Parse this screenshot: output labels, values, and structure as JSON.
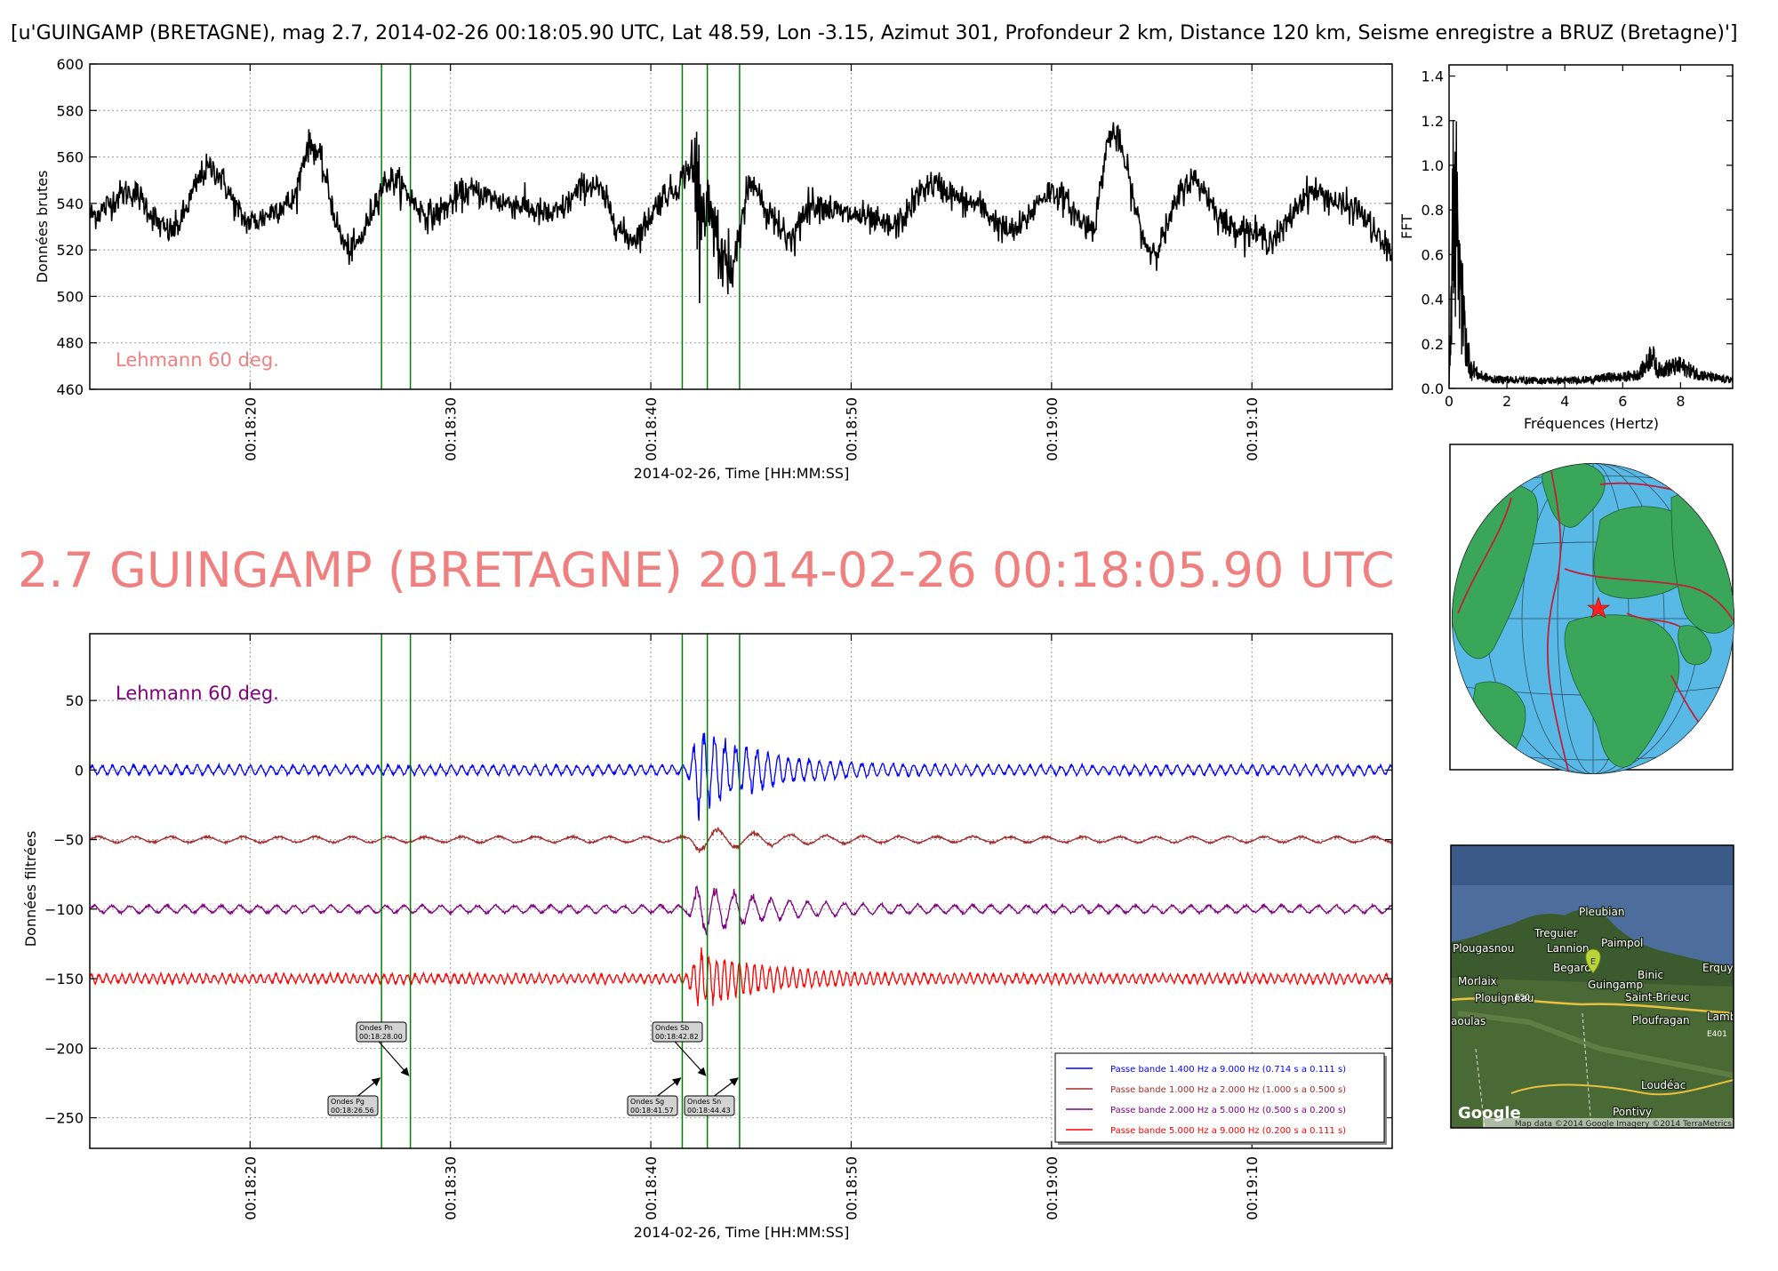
{
  "figure": {
    "suptitle": "[u'GUINGAMP (BRETAGNE), mag 2.7, 2014-02-26 00:18:05.90 UTC, Lat 48.59, Lon -3.15, Azimut 301, Profondeur 2 km, Distance   120 km, Seisme enregistre a BRUZ (Bretagne)']",
    "big_title": "2.7 GUINGAMP (BRETAGNE) 2014-02-26 00:18:05.90 UTC",
    "colors": {
      "raw": "#000000",
      "phase_line": "#008000",
      "annotation": "#f08080",
      "band1": "#0000ff",
      "band2": "#a52a2a",
      "band3": "#800080",
      "band4": "#ff0000"
    }
  },
  "chart_data": [
    {
      "id": "raw",
      "type": "line",
      "ylabel": "Données brutes",
      "xlabel": "2014-02-26, Time [HH:MM:SS]",
      "ylim": [
        460,
        600
      ],
      "yticks": [
        460,
        480,
        500,
        520,
        540,
        560,
        580,
        600
      ],
      "xlim": [
        "00:18:12",
        "00:19:17"
      ],
      "xticks": [
        "00:18:20",
        "00:18:30",
        "00:18:40",
        "00:18:50",
        "00:19:00",
        "00:19:10"
      ],
      "grid": true,
      "annotation": "Lehmann 60 deg.",
      "phase_lines": [
        "00:18:26.56",
        "00:18:28.00",
        "00:18:41.57",
        "00:18:42.82",
        "00:18:44.43"
      ],
      "series": [
        {
          "color": "#000000",
          "x": [
            "00:18:12",
            "00:18:14",
            "00:18:16",
            "00:18:18",
            "00:18:20",
            "00:18:22",
            "00:18:23",
            "00:18:25",
            "00:18:27",
            "00:18:29",
            "00:18:31",
            "00:18:33",
            "00:18:35",
            "00:18:37",
            "00:18:39",
            "00:18:41",
            "00:18:42",
            "00:18:43",
            "00:18:44",
            "00:18:45",
            "00:18:46",
            "00:18:47",
            "00:18:48",
            "00:18:50",
            "00:18:52",
            "00:18:54",
            "00:18:56",
            "00:18:58",
            "00:19:00",
            "00:19:02",
            "00:19:03",
            "00:19:05",
            "00:19:07",
            "00:19:09",
            "00:19:11",
            "00:19:13",
            "00:19:15",
            "00:19:17"
          ],
          "y": [
            535,
            545,
            528,
            555,
            532,
            540,
            565,
            520,
            550,
            535,
            545,
            540,
            535,
            548,
            525,
            545,
            555,
            530,
            510,
            548,
            535,
            525,
            540,
            535,
            530,
            548,
            540,
            528,
            545,
            530,
            570,
            520,
            550,
            530,
            525,
            545,
            538,
            520
          ]
        }
      ]
    },
    {
      "id": "fft",
      "type": "line",
      "ylabel": "FFT",
      "xlabel": "Fréquences (Hertz)",
      "ylim": [
        0,
        1.45
      ],
      "yticks": [
        0.0,
        0.2,
        0.4,
        0.6,
        0.8,
        1.0,
        1.2,
        1.4
      ],
      "xlim": [
        0,
        9.8
      ],
      "xticks": [
        0,
        2,
        4,
        6,
        8
      ],
      "series": [
        {
          "color": "#000000",
          "x": [
            0.0,
            0.05,
            0.1,
            0.15,
            0.2,
            0.25,
            0.3,
            0.35,
            0.4,
            0.5,
            0.6,
            0.7,
            0.8,
            1.0,
            1.5,
            2.0,
            3.0,
            4.0,
            5.0,
            5.5,
            6.0,
            6.5,
            6.8,
            7.0,
            7.2,
            7.5,
            8.0,
            8.5,
            9.0,
            9.5,
            9.8
          ],
          "y": [
            0.05,
            0.35,
            0.65,
            1.02,
            0.85,
            0.95,
            0.7,
            0.55,
            0.5,
            0.4,
            0.25,
            0.15,
            0.1,
            0.06,
            0.04,
            0.04,
            0.035,
            0.035,
            0.04,
            0.05,
            0.05,
            0.06,
            0.1,
            0.16,
            0.08,
            0.09,
            0.1,
            0.07,
            0.05,
            0.04,
            0.04
          ]
        }
      ]
    },
    {
      "id": "filtered",
      "type": "line",
      "ylabel": "Données filtrées",
      "xlabel": "2014-02-26, Time [HH:MM:SS]",
      "ylim": [
        -272,
        98
      ],
      "yticks": [
        -250,
        -200,
        -150,
        -100,
        -50,
        0,
        50
      ],
      "xlim": [
        "00:18:12",
        "00:19:17"
      ],
      "xticks": [
        "00:18:20",
        "00:18:30",
        "00:18:40",
        "00:18:50",
        "00:19:00",
        "00:19:10"
      ],
      "grid": true,
      "annotation": "Lehmann 60 deg.",
      "phase_lines": [
        "00:18:26.56",
        "00:18:28.00",
        "00:18:41.57",
        "00:18:42.82",
        "00:18:44.43"
      ],
      "phase_labels": [
        {
          "label": "Ondes Pg",
          "time": "00:18:26.56"
        },
        {
          "label": "Ondes Pn",
          "time": "00:18:28.00"
        },
        {
          "label": "Ondes Sg",
          "time": "00:18:41.57"
        },
        {
          "label": "Ondes Sb",
          "time": "00:18:42.82"
        },
        {
          "label": "Ondes Sn",
          "time": "00:18:44.43"
        }
      ],
      "legend_position": "lower-right",
      "series": [
        {
          "name": "Passe bande 1.400 Hz a 9.000 Hz (0.714 s a 0.111 s)",
          "color": "#0000ff",
          "offset": 0,
          "noise_amplitude": 3,
          "event_peak_amplitude": 30
        },
        {
          "name": "Passe bande 1.000 Hz a 2.000 Hz (1.000 s a 0.500 s)",
          "color": "#a52a2a",
          "offset": -50,
          "noise_amplitude": 2,
          "event_peak_amplitude": 8
        },
        {
          "name": "Passe bande 2.000 Hz a 5.000 Hz (0.500 s a 0.200 s)",
          "color": "#800080",
          "offset": -100,
          "noise_amplitude": 2.5,
          "event_peak_amplitude": 18
        },
        {
          "name": "Passe bande 5.000 Hz a 9.000 Hz (0.200 s a 0.111 s)",
          "color": "#ff0000",
          "offset": -150,
          "noise_amplitude": 3,
          "event_peak_amplitude": 20
        }
      ]
    }
  ],
  "globe_map": {
    "icon": "globe-icon",
    "marker": "red star at epicenter"
  },
  "region_map": {
    "labels": [
      "Pleubian",
      "Treguier",
      "Lannion",
      "Paimpol",
      "Plougasnou",
      "Begard",
      "Guingamp",
      "Binic",
      "Erquy",
      "Morlaix",
      "Plouigneau",
      "E50",
      "Saint-Brieuc",
      "Lamb",
      "Ploufragan",
      "E401",
      "aoulas",
      "Loudéac",
      "Pontivy"
    ],
    "marker_label": "E",
    "logo": "Google",
    "attribution": "Map data ©2014 Google  Imagery ©2014 TerraMetrics"
  }
}
